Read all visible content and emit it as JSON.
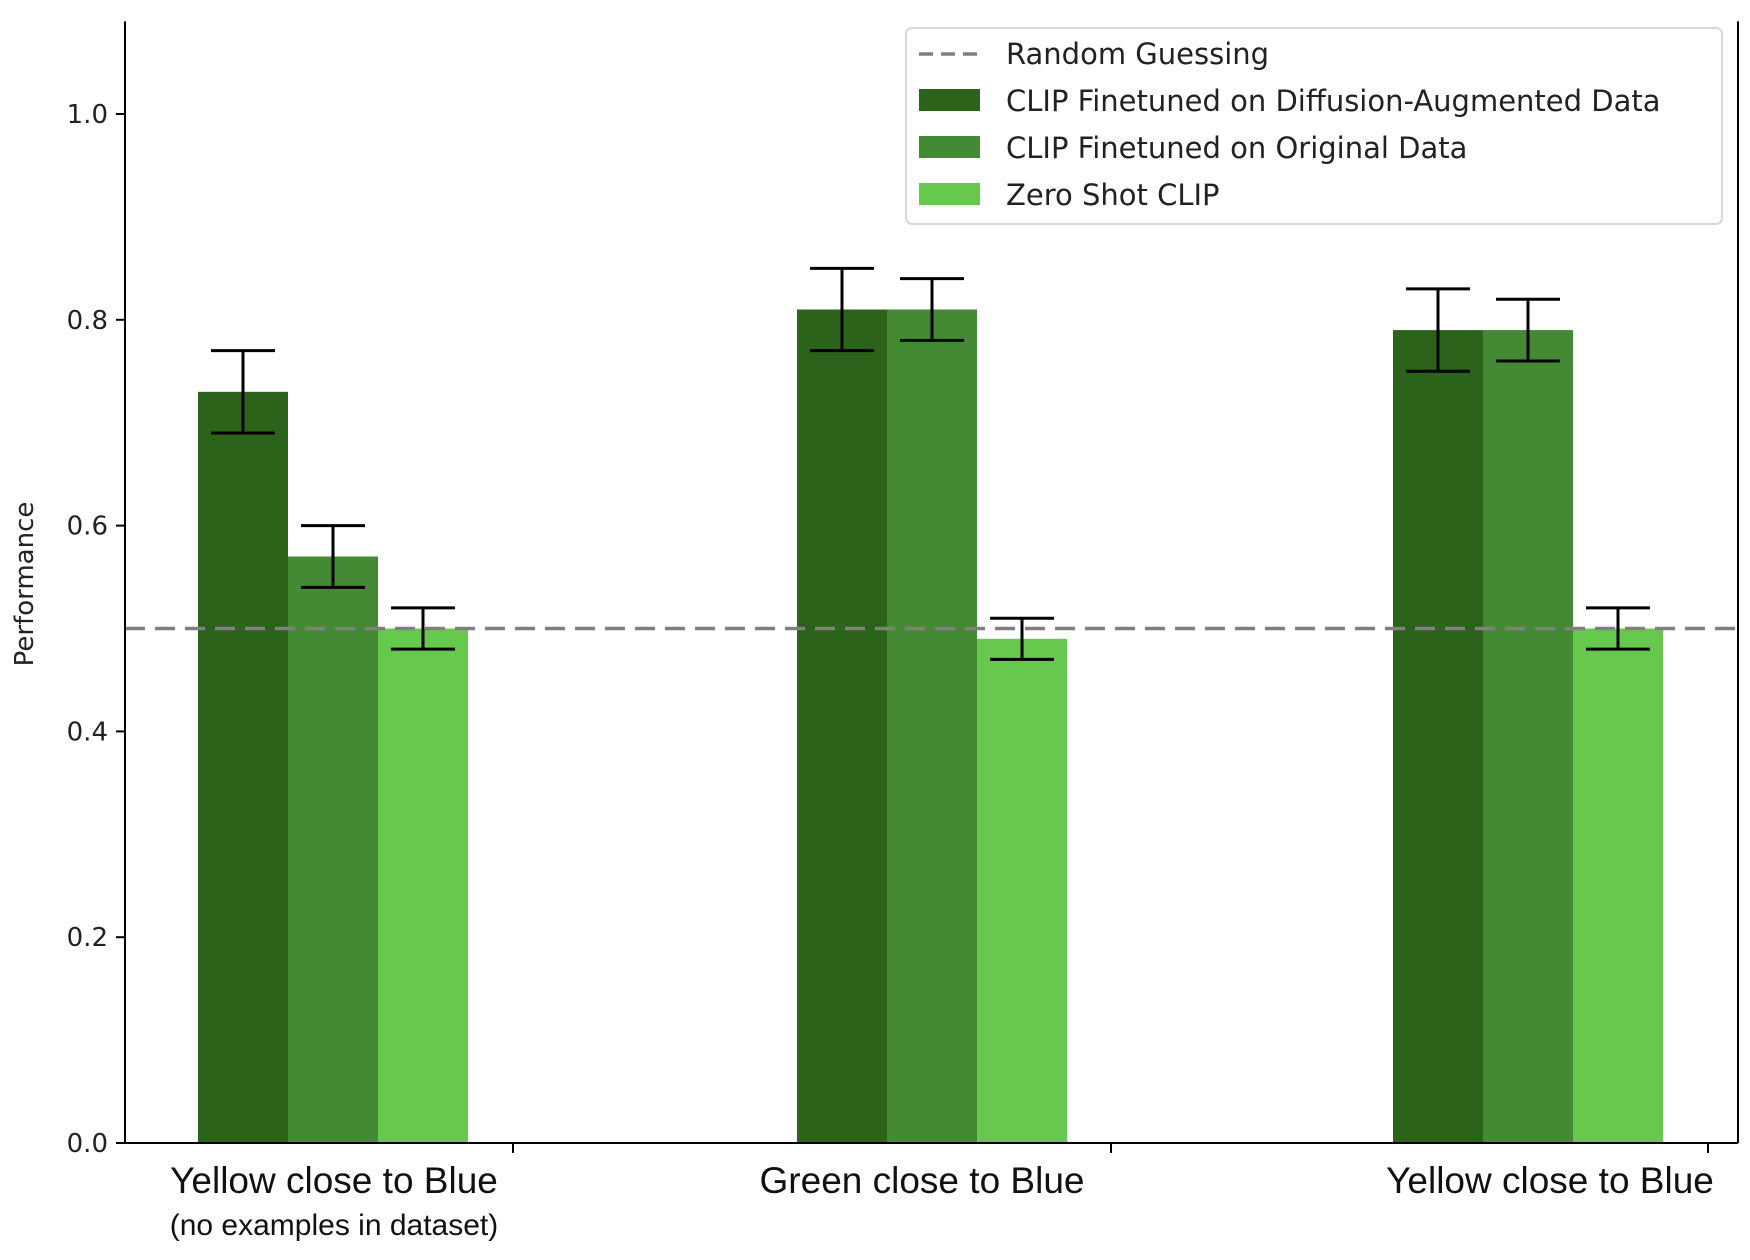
{
  "chart_data": {
    "type": "bar",
    "title": "",
    "xlabel": "",
    "ylabel": "Performance",
    "ylim": [
      0,
      1.09
    ],
    "yticks": [
      "0.0",
      "0.2",
      "0.4",
      "0.6",
      "0.8",
      "1.0"
    ],
    "categories": [
      {
        "label": "Yellow close to Blue",
        "sublabel": "(no examples in dataset)"
      },
      {
        "label": "Green close to Blue",
        "sublabel": ""
      },
      {
        "label": "Yellow close to Blue",
        "sublabel": ""
      }
    ],
    "series": [
      {
        "name": "CLIP Finetuned on Diffusion-Augmented Data",
        "color": "#2b631b",
        "values": [
          0.73,
          0.81,
          0.79
        ],
        "errors": [
          0.04,
          0.04,
          0.04
        ]
      },
      {
        "name": "CLIP Finetuned on Original Data",
        "color": "#448a35",
        "values": [
          0.57,
          0.81,
          0.79
        ],
        "errors": [
          0.03,
          0.03,
          0.03
        ]
      },
      {
        "name": "Zero Shot CLIP",
        "color": "#66c94d",
        "values": [
          0.5,
          0.49,
          0.5
        ],
        "errors": [
          0.02,
          0.02,
          0.02
        ]
      }
    ],
    "reference_line": {
      "name": "Random Guessing",
      "value": 0.5,
      "color": "#808080",
      "style": "dashed"
    },
    "grid": false,
    "legend_position": "top-right"
  }
}
